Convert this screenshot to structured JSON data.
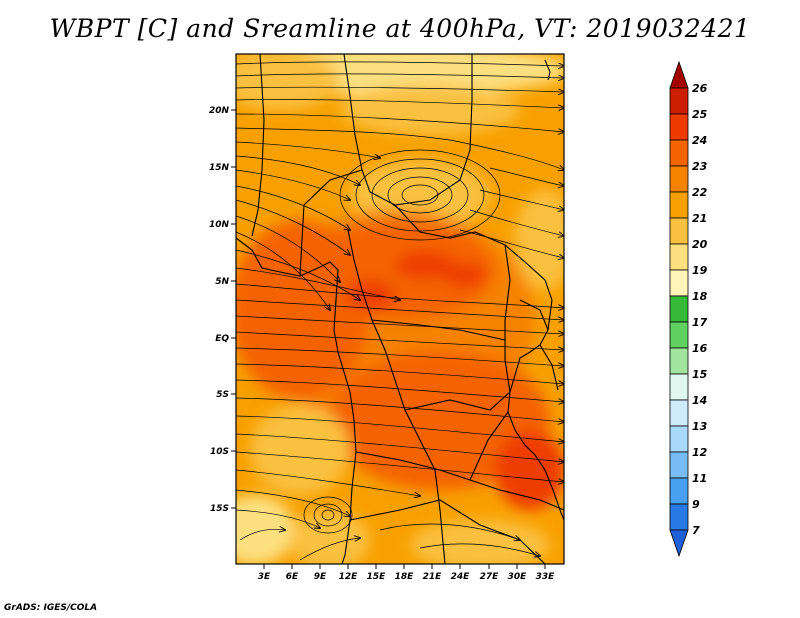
{
  "title": "WBPT [C] and Sreamline at 400hPa, VT: 2019032421",
  "credit": "GrADS: IGES/COLA",
  "lat_labels": [
    "20N",
    "15N",
    "10N",
    "5N",
    "EQ",
    "5S",
    "10S",
    "15S"
  ],
  "lon_labels": [
    "3E",
    "6E",
    "9E",
    "12E",
    "15E",
    "18E",
    "21E",
    "24E",
    "27E",
    "30E",
    "33E"
  ],
  "colorbar": {
    "labels": [
      "26",
      "25",
      "24",
      "23",
      "22",
      "21",
      "20",
      "19",
      "18",
      "17",
      "16",
      "15",
      "14",
      "13",
      "12",
      "11",
      "9",
      "7"
    ],
    "colors": [
      "#a50000",
      "#cc1e00",
      "#ee3c00",
      "#f46400",
      "#f68200",
      "#f8a000",
      "#fac040",
      "#fce080",
      "#fff5b8",
      "#38b838",
      "#60d060",
      "#a0e4a0",
      "#e0f8f0",
      "#d0ecfc",
      "#a8d8fa",
      "#78bcf6",
      "#4aa0f0",
      "#2878e6",
      "#1e60d8"
    ]
  }
}
